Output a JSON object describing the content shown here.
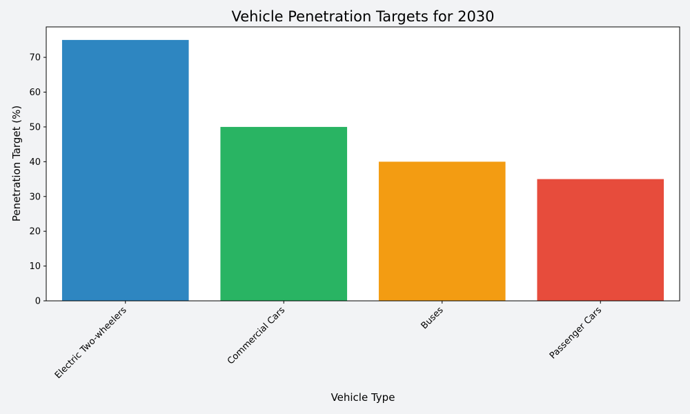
{
  "chart_data": {
    "type": "bar",
    "title": "Vehicle Penetration Targets for 2030",
    "xlabel": "Vehicle Type",
    "ylabel": "Penetration Target (%)",
    "categories": [
      "Electric Two-wheelers",
      "Commercial Cars",
      "Buses",
      "Passenger Cars"
    ],
    "values": [
      75,
      50,
      40,
      35
    ],
    "colors": [
      "#2e86c1",
      "#29b463",
      "#f39c12",
      "#e74c3c"
    ],
    "ylim": [
      0,
      78.75
    ],
    "yticks": [
      0,
      10,
      20,
      30,
      40,
      50,
      60,
      70
    ],
    "grid": false,
    "background": "#ffffff",
    "figure_background": "#f2f3f5"
  }
}
